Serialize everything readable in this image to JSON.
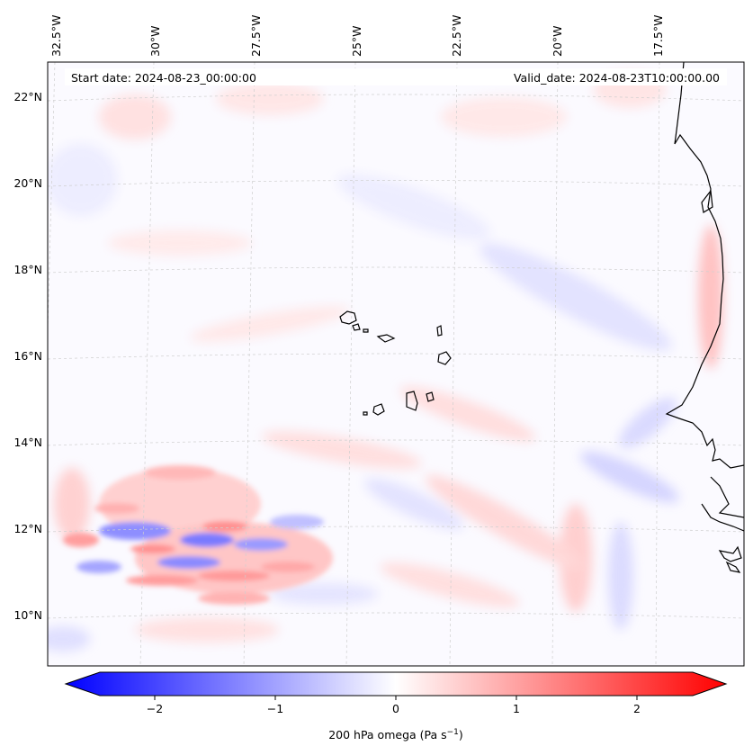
{
  "map": {
    "start_date": "Start date: 2024-08-23_00:00:00",
    "valid_date": "Valid_date: 2024-08-23T10:00:00.00",
    "lon_labels": [
      "32.5°W",
      "30°W",
      "27.5°W",
      "25°W",
      "22.5°W",
      "20°W",
      "17.5°W"
    ],
    "lat_labels": [
      "22°N",
      "20°N",
      "18°N",
      "16°N",
      "14°N",
      "12°N",
      "10°N"
    ],
    "field": "200 hPa omega",
    "region": {
      "lon_min": -32.7,
      "lon_max": -15.4,
      "lat_min": 8.9,
      "lat_max": 22.8
    }
  },
  "colorbar": {
    "label_main": "200 hPa omega (Pa s",
    "label_exp": "−1",
    "label_close": ")",
    "ticks": [
      "−2",
      "−1",
      "0",
      "1",
      "2"
    ],
    "tick_values": [
      -2,
      -1,
      0,
      1,
      2
    ],
    "range": [
      -2.6,
      2.6
    ],
    "colormap": "bwr",
    "low_color": "#0000ff",
    "mid_color": "#ffffff",
    "high_color": "#ff0000"
  }
}
